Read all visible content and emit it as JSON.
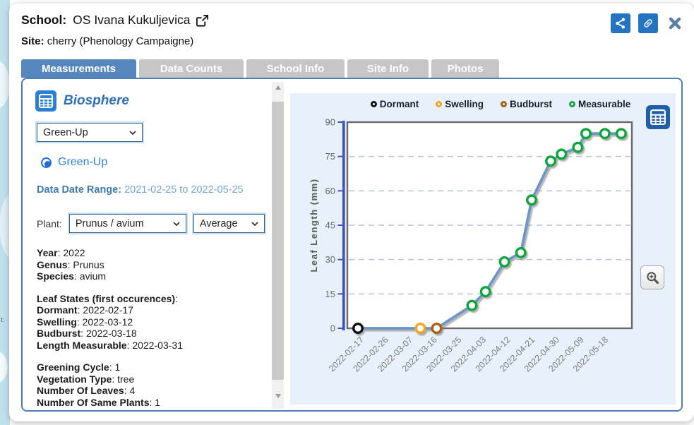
{
  "map_text": "t:",
  "header": {
    "school_label": "School:",
    "school_name": "OS Ivana Kukuljevica",
    "site_label": "Site:",
    "site_value": "cherry (Phenology Campaigne)"
  },
  "icons": [
    "external-link-icon",
    "share-icon",
    "link-icon",
    "close-icon",
    "table-icon",
    "zoom-in-icon",
    "chevron-down-icon",
    "scroll-up-icon",
    "scroll-down-icon"
  ],
  "tabs": [
    {
      "label": "Measurements",
      "active": true
    },
    {
      "label": "Data Counts",
      "active": false
    },
    {
      "label": "School Info",
      "active": false
    },
    {
      "label": "Site Info",
      "active": false
    },
    {
      "label": "Photos",
      "active": false
    }
  ],
  "panel": {
    "section_title": "Biosphere",
    "campaign_select_value": "Green-Up",
    "radio_label": "Green-Up",
    "date_range_label": "Data Date Range:",
    "date_range_value": "2021-02-25 to 2022-05-25",
    "plant_label": "Plant:",
    "plant_select_value": "Prunus / avium",
    "agg_select_value": "Average",
    "stats1": [
      {
        "label": "Year",
        "value": "2022"
      },
      {
        "label": "Genus",
        "value": "Prunus"
      },
      {
        "label": "Species",
        "value": "avium"
      }
    ],
    "leaf_heading": "Leaf States (first occurences)",
    "leaf_states": [
      {
        "label": "Dormant",
        "value": "2022-02-17"
      },
      {
        "label": "Swelling",
        "value": "2022-03-12"
      },
      {
        "label": "Budburst",
        "value": "2022-03-18"
      },
      {
        "label": "Length Measurable",
        "value": "2022-03-31"
      }
    ],
    "stats2": [
      {
        "label": "Greening Cycle",
        "value": "1"
      },
      {
        "label": "Vegetation Type",
        "value": "tree"
      },
      {
        "label": "Number Of Leaves",
        "value": "4"
      },
      {
        "label": "Number Of Same Plants",
        "value": "1"
      }
    ]
  },
  "chart_data": {
    "type": "line",
    "title": "",
    "xlabel": "",
    "ylabel": "Leaf Length (mm)",
    "ylim": [
      0,
      90
    ],
    "yticks": [
      0,
      15,
      30,
      45,
      60,
      75,
      90
    ],
    "grid": "dashed-horizontal",
    "legend_position": "top",
    "legend": [
      {
        "label": "Dormant",
        "color": "#111111"
      },
      {
        "label": "Swelling",
        "color": "#f6a21d"
      },
      {
        "label": "Budburst",
        "color": "#a95f15"
      },
      {
        "label": "Measurable",
        "color": "#11a63c"
      }
    ],
    "line_color": "#6e96c8",
    "xticks": [
      "2022-02-17",
      "2022-02-26",
      "2022-03-07",
      "2022-03-16",
      "2022-03-25",
      "2022-04-03",
      "2022-04-12",
      "2022-04-21",
      "2022-04-30",
      "2022-05-09",
      "2022-05-18"
    ],
    "points": [
      {
        "date": "2022-02-17",
        "value": 0,
        "state": "Dormant"
      },
      {
        "date": "2022-03-12",
        "value": 0,
        "state": "Swelling"
      },
      {
        "date": "2022-03-18",
        "value": 0,
        "state": "Budburst"
      },
      {
        "date": "2022-03-31",
        "value": 10,
        "state": "Measurable"
      },
      {
        "date": "2022-04-05",
        "value": 16,
        "state": "Measurable"
      },
      {
        "date": "2022-04-12",
        "value": 29,
        "state": "Measurable"
      },
      {
        "date": "2022-04-18",
        "value": 33,
        "state": "Measurable"
      },
      {
        "date": "2022-04-22",
        "value": 56,
        "state": "Measurable"
      },
      {
        "date": "2022-04-29",
        "value": 73,
        "state": "Measurable"
      },
      {
        "date": "2022-05-03",
        "value": 76,
        "state": "Measurable"
      },
      {
        "date": "2022-05-09",
        "value": 79,
        "state": "Measurable"
      },
      {
        "date": "2022-05-12",
        "value": 85,
        "state": "Measurable"
      },
      {
        "date": "2022-05-19",
        "value": 85,
        "state": "Measurable"
      },
      {
        "date": "2022-05-25",
        "value": 85,
        "state": "Measurable"
      }
    ]
  }
}
